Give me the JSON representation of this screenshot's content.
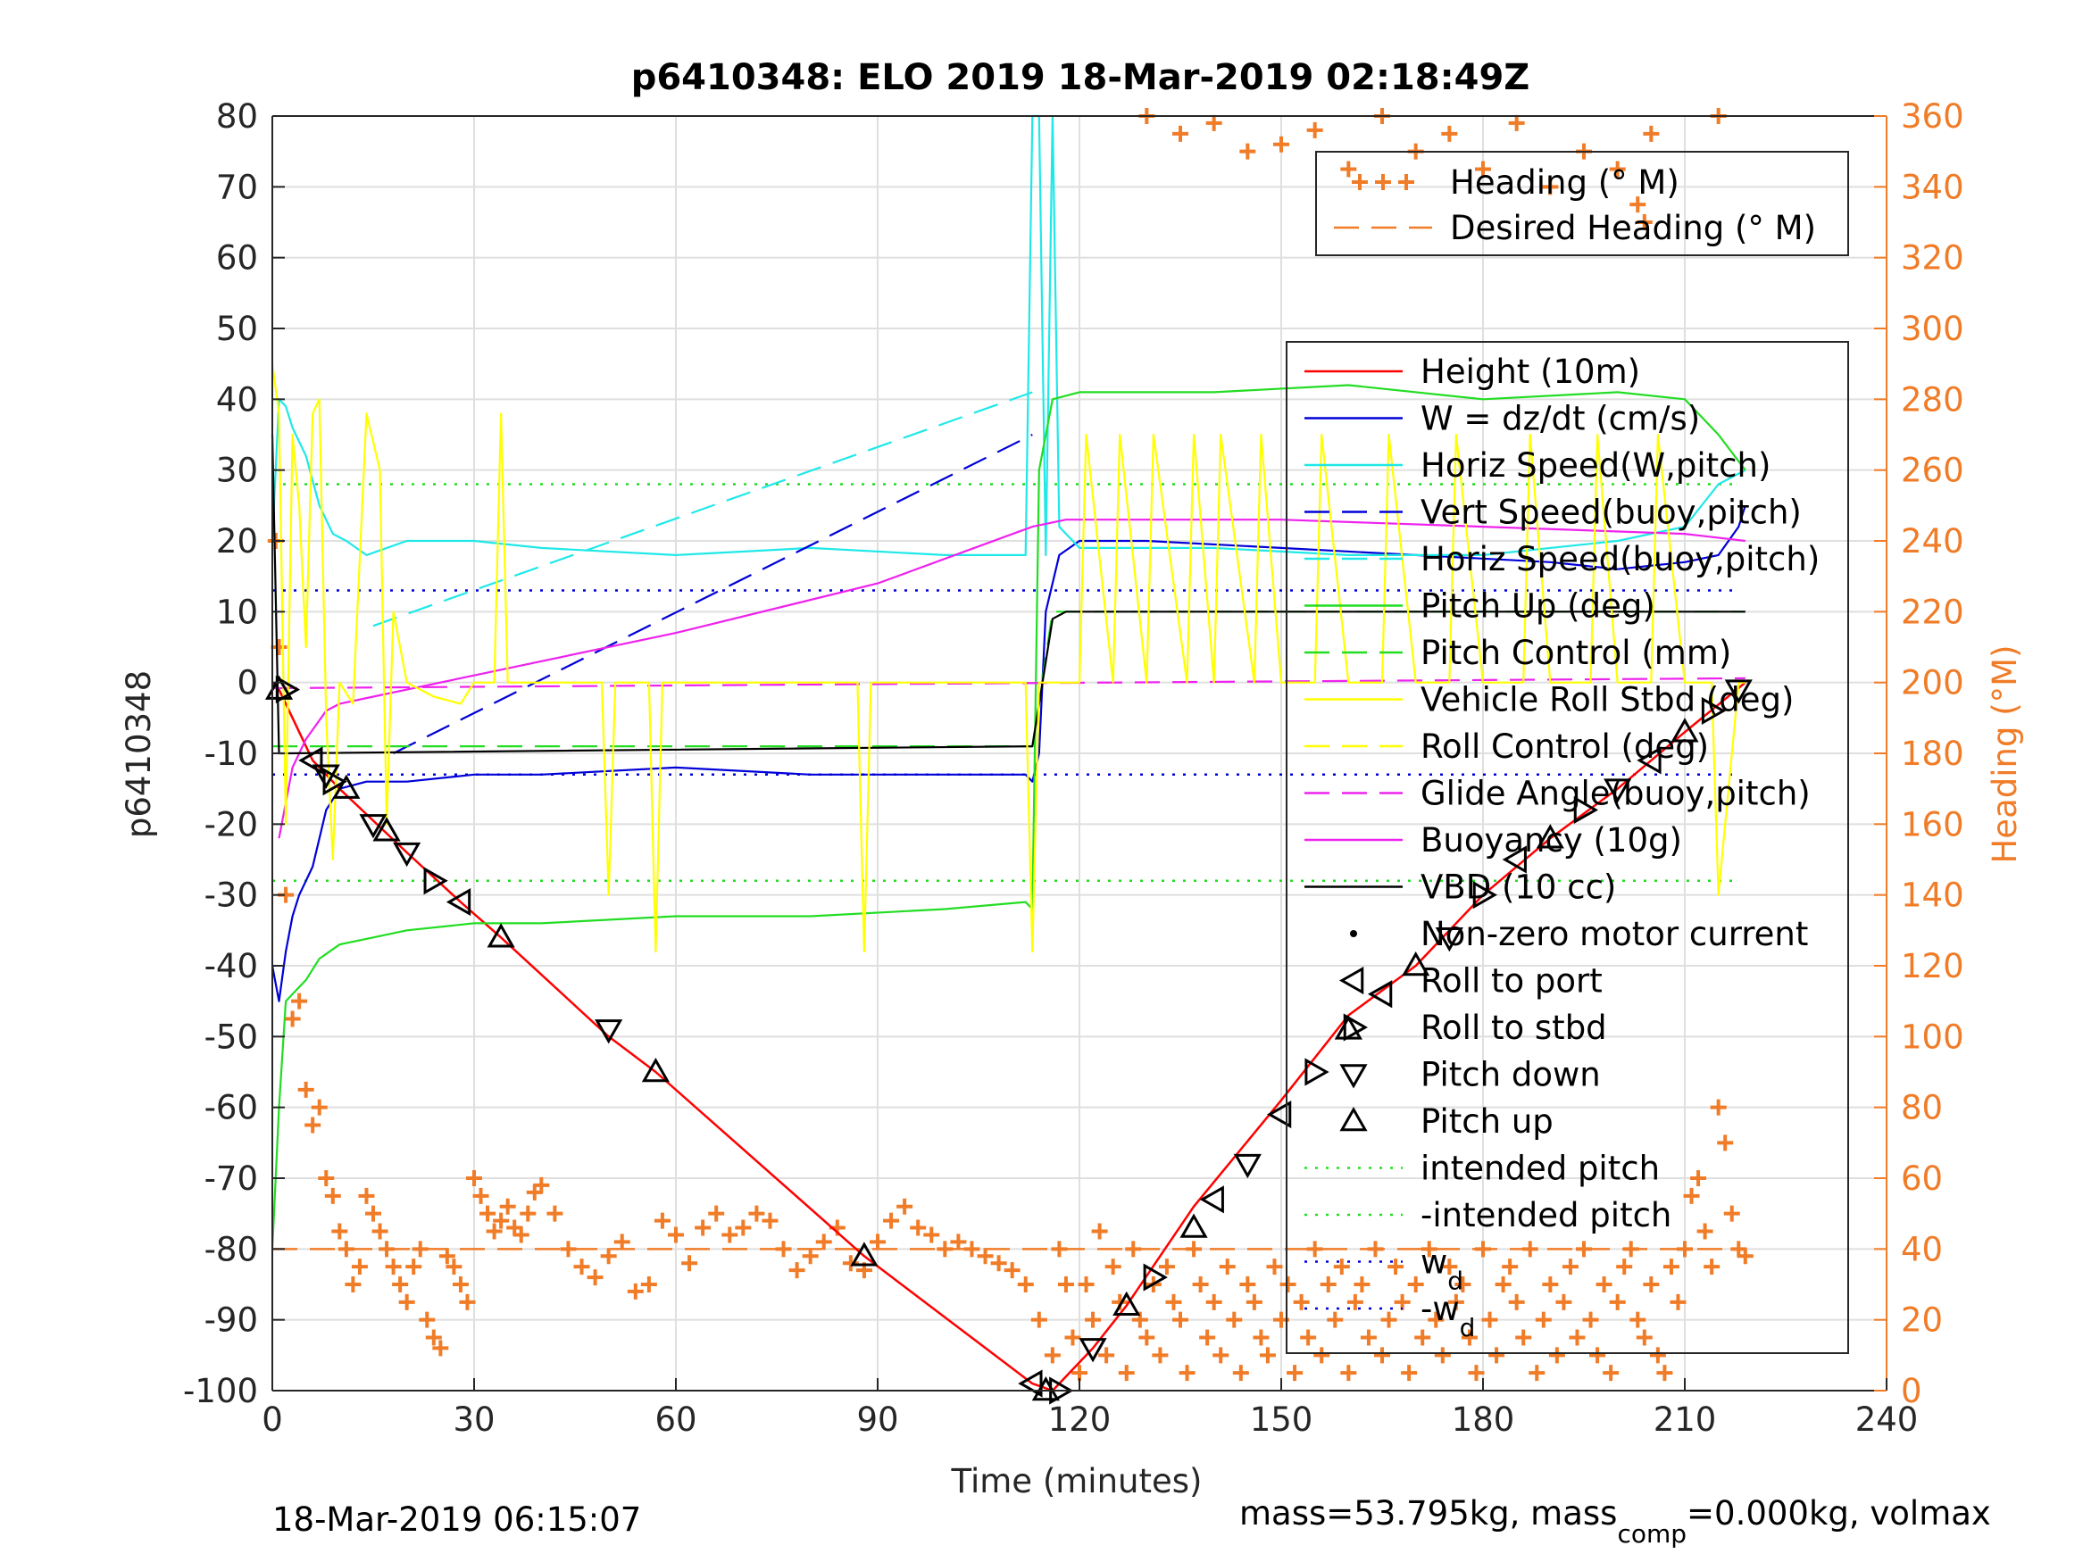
{
  "chart_data": {
    "type": "line",
    "title": "p6410348: ELO 2019 18-Mar-2019 02:18:49Z",
    "xlabel": "Time (minutes)",
    "ylabel_left": "p6410348",
    "ylabel_right": "Heading (°M)",
    "xlim": [
      0,
      240
    ],
    "ylim_left": [
      -100,
      80
    ],
    "ylim_right": [
      0,
      360
    ],
    "xticks": [
      0,
      30,
      60,
      90,
      120,
      150,
      180,
      210,
      240
    ],
    "yticks_left": [
      80,
      70,
      60,
      50,
      40,
      30,
      20,
      10,
      0,
      -10,
      -20,
      -30,
      -40,
      -50,
      -60,
      -70,
      -80,
      -90,
      -100
    ],
    "yticks_right": [
      360,
      340,
      320,
      300,
      280,
      260,
      240,
      220,
      200,
      180,
      160,
      140,
      120,
      100,
      80,
      60,
      40,
      20,
      0
    ],
    "grid": true,
    "footer_left": "18-Mar-2019 06:15:07",
    "footer_right": {
      "pre": "mass=53.795kg, mass",
      "sub": "comp",
      "post": "=0.000kg, volmax"
    },
    "legend_top": [
      {
        "label": "Heading (° M)",
        "color": "#f07c28",
        "marker": "+"
      },
      {
        "label": "Desired Heading (° M)",
        "color": "#f07c28",
        "line": "dash"
      }
    ],
    "legend_main": [
      {
        "label": "Height (10m)",
        "color": "#ff0000",
        "line": "solid"
      },
      {
        "label": "W = dz/dt (cm/s)",
        "color": "#0000d8",
        "line": "solid"
      },
      {
        "label": "Horiz Speed(W,pitch)",
        "color": "#20e8e8",
        "line": "solid"
      },
      {
        "label": "Vert Speed(buoy,pitch)",
        "color": "#0000d8",
        "line": "dash"
      },
      {
        "label": "Horiz Speed(buoy,pitch)",
        "color": "#20e8e8",
        "line": "dash"
      },
      {
        "label": "Pitch Up (deg)",
        "color": "#22dd22",
        "line": "solid"
      },
      {
        "label": "Pitch Control (mm)",
        "color": "#22dd22",
        "line": "dash"
      },
      {
        "label": "Vehicle Roll Stbd (deg)",
        "color": "#ffff00",
        "line": "solid"
      },
      {
        "label": "Roll Control (deg)",
        "color": "#ffff00",
        "line": "dash"
      },
      {
        "label": "Glide Angle(buoy,pitch)",
        "color": "#ee22ee",
        "line": "dash"
      },
      {
        "label": "Buoyancy (10g)",
        "color": "#ee22ee",
        "line": "solid"
      },
      {
        "label": "VBD (10 cc)",
        "color": "#000000",
        "line": "solid"
      },
      {
        "label": "Non-zero motor current",
        "color": "#000000",
        "marker": "dot"
      },
      {
        "label": "Roll to port",
        "color": "#000000",
        "marker": "tri-left"
      },
      {
        "label": "Roll to stbd",
        "color": "#000000",
        "marker": "tri-right"
      },
      {
        "label": "Pitch down",
        "color": "#000000",
        "marker": "tri-down"
      },
      {
        "label": "Pitch up",
        "color": "#000000",
        "marker": "tri-up"
      },
      {
        "label": "intended pitch",
        "color": "#22dd22",
        "line": "dot"
      },
      {
        "label": "-intended pitch",
        "color": "#22dd22",
        "line": "dot"
      },
      {
        "label": "w",
        "sub": "d",
        "color": "#0000d8",
        "line": "dot"
      },
      {
        "label": "-w",
        "sub": "d",
        "color": "#0000d8",
        "line": "dot"
      }
    ],
    "series": [
      {
        "name": "Height (10m)",
        "color": "#ff0000",
        "x": [
          0,
          1,
          3,
          6,
          10,
          20,
          28,
          34,
          50,
          57,
          88,
          113,
          116,
          122,
          127,
          137,
          150,
          160,
          170,
          180,
          190,
          200,
          210,
          219
        ],
        "y": [
          0,
          -1,
          -5,
          -11,
          -15,
          -24,
          -31,
          -36,
          -50,
          -55,
          -81,
          -99,
          -100,
          -94,
          -88,
          -74,
          -59,
          -47,
          -40,
          -30,
          -22,
          -15,
          -7,
          0
        ]
      },
      {
        "name": "W = dz/dt (cm/s)",
        "color": "#0000d8",
        "x": [
          0,
          1,
          2,
          3,
          4,
          5,
          6,
          8,
          10,
          14,
          20,
          30,
          40,
          60,
          80,
          100,
          112,
          113,
          114,
          115,
          117,
          120,
          130,
          150,
          170,
          190,
          200,
          210,
          215,
          218,
          219
        ],
        "y": [
          -40,
          -45,
          -38,
          -33,
          -30,
          -28,
          -26,
          -18,
          -15,
          -14,
          -14,
          -13,
          -13,
          -12,
          -13,
          -13,
          -13,
          -14,
          -10,
          10,
          18,
          20,
          20,
          19,
          18,
          17,
          16,
          17,
          18,
          22,
          25
        ]
      },
      {
        "name": "Horiz Speed(W,pitch)",
        "color": "#20e8e8",
        "x": [
          0,
          1,
          2,
          3,
          5,
          7,
          9,
          11,
          14,
          20,
          30,
          40,
          60,
          80,
          100,
          112,
          113,
          114,
          115,
          116,
          117,
          120,
          140,
          160,
          180,
          200,
          210,
          215,
          219
        ],
        "y": [
          20,
          40,
          39,
          36,
          32,
          25,
          21,
          20,
          18,
          20,
          20,
          19,
          18,
          19,
          18,
          18,
          80,
          80,
          18,
          80,
          22,
          19,
          19,
          18,
          18,
          20,
          22,
          28,
          30
        ]
      },
      {
        "name": "Vert Speed(buoy,pitch)",
        "color": "#0000d8",
        "line": "dash",
        "x": [
          18,
          113
        ],
        "y": [
          -10,
          35
        ]
      },
      {
        "name": "Horiz Speed(buoy,pitch)",
        "color": "#20e8e8",
        "line": "dash",
        "x": [
          15,
          113
        ],
        "y": [
          8,
          41
        ]
      },
      {
        "name": "Pitch Up (deg)",
        "color": "#22dd22",
        "x": [
          0,
          1,
          2,
          3,
          5,
          7,
          10,
          15,
          20,
          30,
          40,
          60,
          80,
          100,
          112,
          113,
          114,
          116,
          120,
          140,
          160,
          180,
          200,
          210,
          215,
          219
        ],
        "y": [
          -80,
          -60,
          -45,
          -44,
          -42,
          -39,
          -37,
          -36,
          -35,
          -34,
          -34,
          -33,
          -33,
          -32,
          -31,
          -32,
          30,
          40,
          41,
          41,
          42,
          40,
          41,
          40,
          35,
          30
        ]
      },
      {
        "name": "Pitch Control (mm)",
        "color": "#22dd22",
        "line": "dash",
        "x": [
          0,
          113,
          116,
          219
        ],
        "y": [
          -9,
          -9,
          10,
          10
        ]
      },
      {
        "name": "Glide Angle(buoy,pitch)",
        "color": "#ee22ee",
        "line": "dash",
        "x": [
          0,
          219
        ],
        "y": [
          -0.8,
          0.6
        ]
      },
      {
        "name": "Buoyancy (10g)",
        "color": "#ee22ee",
        "x": [
          1,
          3,
          5,
          8,
          10,
          15,
          20,
          30,
          60,
          90,
          113,
          118,
          150,
          180,
          210,
          219
        ],
        "y": [
          -22,
          -12,
          -8,
          -4,
          -3,
          -2,
          -1,
          1,
          7,
          14,
          22,
          23,
          23,
          22,
          21,
          20
        ]
      },
      {
        "name": "VBD (10 cc)",
        "color": "#000000",
        "x": [
          0,
          1,
          2,
          113,
          116,
          118,
          219
        ],
        "y": [
          35,
          -10,
          -10,
          -9,
          9,
          10,
          10
        ]
      },
      {
        "name": "Vehicle Roll Stbd (deg)",
        "color": "#ffff00",
        "x": [
          0,
          1,
          2,
          3,
          4,
          5,
          6,
          7,
          8,
          9,
          10,
          12,
          14,
          16,
          17,
          18,
          20,
          24,
          28,
          30,
          33,
          34,
          35,
          40,
          49,
          50,
          51,
          56,
          57,
          58,
          70,
          87,
          88,
          89,
          100,
          112,
          113,
          114,
          116,
          120,
          121,
          125,
          126,
          130,
          131,
          136,
          137,
          140,
          141,
          146,
          147,
          150,
          155,
          156,
          160,
          165,
          166,
          170,
          175,
          176,
          180,
          186,
          187,
          190,
          196,
          197,
          200,
          205,
          206,
          210,
          214,
          215,
          218,
          219
        ],
        "y": [
          45,
          38,
          -20,
          35,
          25,
          5,
          38,
          40,
          -5,
          -25,
          0,
          -3,
          38,
          30,
          -20,
          10,
          0,
          -2,
          -3,
          0,
          0,
          38,
          0,
          0,
          0,
          -30,
          0,
          0,
          -38,
          0,
          0,
          0,
          -38,
          0,
          0,
          0,
          -38,
          0,
          0,
          0,
          35,
          0,
          35,
          0,
          35,
          0,
          35,
          0,
          35,
          0,
          35,
          0,
          0,
          35,
          0,
          0,
          35,
          0,
          0,
          35,
          0,
          0,
          35,
          0,
          0,
          35,
          0,
          0,
          35,
          0,
          0,
          -30,
          0,
          0
        ]
      }
    ],
    "heading": {
      "desired": 40,
      "x": [
        0.5,
        1,
        2,
        3,
        4,
        5,
        6,
        7,
        8,
        9,
        10,
        11,
        12,
        13,
        14,
        15,
        16,
        17,
        18,
        19,
        20,
        21,
        22,
        23,
        24,
        25,
        26,
        27,
        28,
        29,
        30,
        31,
        32,
        33,
        34,
        35,
        36,
        37,
        38,
        39,
        40,
        42,
        44,
        46,
        48,
        50,
        52,
        54,
        56,
        58,
        60,
        62,
        64,
        66,
        68,
        70,
        72,
        74,
        76,
        78,
        80,
        82,
        84,
        86,
        88,
        90,
        92,
        94,
        96,
        98,
        100,
        102,
        104,
        106,
        108,
        110,
        112,
        114,
        116,
        117,
        118,
        119,
        120,
        121,
        122,
        123,
        124,
        125,
        126,
        127,
        128,
        129,
        130,
        131,
        132,
        133,
        134,
        135,
        136,
        137,
        138,
        139,
        140,
        141,
        142,
        143,
        144,
        145,
        146,
        147,
        148,
        149,
        150,
        151,
        152,
        153,
        154,
        155,
        156,
        157,
        158,
        159,
        160,
        161,
        162,
        163,
        164,
        165,
        166,
        167,
        168,
        169,
        170,
        171,
        172,
        173,
        174,
        175,
        176,
        177,
        178,
        179,
        180,
        181,
        182,
        183,
        184,
        185,
        186,
        187,
        188,
        189,
        190,
        191,
        192,
        193,
        194,
        195,
        196,
        197,
        198,
        199,
        200,
        201,
        202,
        203,
        204,
        205,
        206,
        207,
        208,
        209,
        210,
        211,
        212,
        213,
        214,
        215,
        216,
        217,
        218,
        219,
        130,
        135,
        140,
        145,
        150,
        155,
        160,
        165,
        170,
        175,
        180,
        185,
        190,
        195,
        200,
        203,
        204,
        205,
        215
      ],
      "y": [
        240,
        210,
        140,
        105,
        110,
        85,
        75,
        80,
        60,
        55,
        45,
        40,
        30,
        35,
        55,
        50,
        45,
        40,
        35,
        30,
        25,
        35,
        40,
        20,
        15,
        12,
        38,
        35,
        30,
        25,
        60,
        55,
        50,
        45,
        48,
        52,
        46,
        44,
        50,
        56,
        58,
        50,
        40,
        35,
        32,
        38,
        42,
        28,
        30,
        48,
        44,
        36,
        46,
        50,
        44,
        46,
        50,
        48,
        40,
        34,
        38,
        42,
        46,
        36,
        34,
        42,
        48,
        52,
        46,
        44,
        40,
        42,
        40,
        38,
        36,
        34,
        30,
        20,
        10,
        40,
        30,
        15,
        5,
        30,
        20,
        45,
        10,
        35,
        25,
        5,
        40,
        20,
        15,
        30,
        10,
        35,
        25,
        20,
        5,
        40,
        30,
        15,
        25,
        10,
        35,
        20,
        5,
        30,
        25,
        15,
        10,
        35,
        20,
        30,
        5,
        25,
        15,
        40,
        10,
        30,
        20,
        35,
        5,
        25,
        30,
        15,
        40,
        10,
        20,
        35,
        25,
        5,
        30,
        15,
        40,
        20,
        10,
        35,
        25,
        30,
        15,
        5,
        40,
        20,
        10,
        30,
        35,
        25,
        15,
        40,
        5,
        20,
        30,
        10,
        25,
        35,
        15,
        40,
        20,
        10,
        30,
        5,
        25,
        35,
        40,
        20,
        15,
        30,
        10,
        5,
        35,
        25,
        40,
        55,
        60,
        45,
        35,
        80,
        70,
        50,
        40,
        38,
        360,
        355,
        358,
        350,
        352,
        356,
        345,
        360,
        350,
        355,
        345,
        358,
        340,
        350,
        345,
        335,
        330,
        355,
        360
      ]
    },
    "event_markers": [
      {
        "x": 1,
        "y": -1,
        "kind": "tri-up"
      },
      {
        "x": 2,
        "y": -1,
        "kind": "tri-right"
      },
      {
        "x": 6,
        "y": -11,
        "kind": "tri-left"
      },
      {
        "x": 8,
        "y": -13,
        "kind": "tri-down"
      },
      {
        "x": 9,
        "y": -14,
        "kind": "tri-right"
      },
      {
        "x": 11,
        "y": -15,
        "kind": "tri-up"
      },
      {
        "x": 15,
        "y": -20,
        "kind": "tri-down"
      },
      {
        "x": 17,
        "y": -21,
        "kind": "tri-up"
      },
      {
        "x": 20,
        "y": -24,
        "kind": "tri-down"
      },
      {
        "x": 24,
        "y": -28,
        "kind": "tri-right"
      },
      {
        "x": 28,
        "y": -31,
        "kind": "tri-left"
      },
      {
        "x": 34,
        "y": -36,
        "kind": "tri-up"
      },
      {
        "x": 50,
        "y": -49,
        "kind": "tri-down"
      },
      {
        "x": 57,
        "y": -55,
        "kind": "tri-up"
      },
      {
        "x": 88,
        "y": -81,
        "kind": "tri-up"
      },
      {
        "x": 113,
        "y": -99,
        "kind": "tri-left"
      },
      {
        "x": 115,
        "y": -100,
        "kind": "tri-up"
      },
      {
        "x": 117,
        "y": -100,
        "kind": "tri-right"
      },
      {
        "x": 122,
        "y": -94,
        "kind": "tri-down"
      },
      {
        "x": 127,
        "y": -88,
        "kind": "tri-up"
      },
      {
        "x": 131,
        "y": -84,
        "kind": "tri-right"
      },
      {
        "x": 137,
        "y": -77,
        "kind": "tri-up"
      },
      {
        "x": 140,
        "y": -73,
        "kind": "tri-left"
      },
      {
        "x": 145,
        "y": -68,
        "kind": "tri-down"
      },
      {
        "x": 150,
        "y": -61,
        "kind": "tri-left"
      },
      {
        "x": 155,
        "y": -55,
        "kind": "tri-right"
      },
      {
        "x": 160,
        "y": -49,
        "kind": "tri-up"
      },
      {
        "x": 165,
        "y": -44,
        "kind": "tri-left"
      },
      {
        "x": 170,
        "y": -40,
        "kind": "tri-up"
      },
      {
        "x": 175,
        "y": -36,
        "kind": "tri-down"
      },
      {
        "x": 180,
        "y": -30,
        "kind": "tri-right"
      },
      {
        "x": 185,
        "y": -25,
        "kind": "tri-left"
      },
      {
        "x": 190,
        "y": -22,
        "kind": "tri-up"
      },
      {
        "x": 195,
        "y": -18,
        "kind": "tri-right"
      },
      {
        "x": 200,
        "y": -15,
        "kind": "tri-down"
      },
      {
        "x": 205,
        "y": -11,
        "kind": "tri-left"
      },
      {
        "x": 210,
        "y": -7,
        "kind": "tri-up"
      },
      {
        "x": 214,
        "y": -4,
        "kind": "tri-right"
      },
      {
        "x": 218,
        "y": -1,
        "kind": "tri-down"
      }
    ],
    "ref_lines": [
      {
        "y": 28,
        "color": "#22dd22",
        "name": "intended pitch"
      },
      {
        "y": -28,
        "color": "#22dd22",
        "name": "-intended pitch"
      },
      {
        "y": 13,
        "color": "#0000d8",
        "name": "w_d"
      },
      {
        "y": -13,
        "color": "#0000d8",
        "name": "-w_d"
      }
    ],
    "colors": {
      "axis": "#262626",
      "grid": "#dfdfdf",
      "heading": "#f07c28"
    }
  }
}
